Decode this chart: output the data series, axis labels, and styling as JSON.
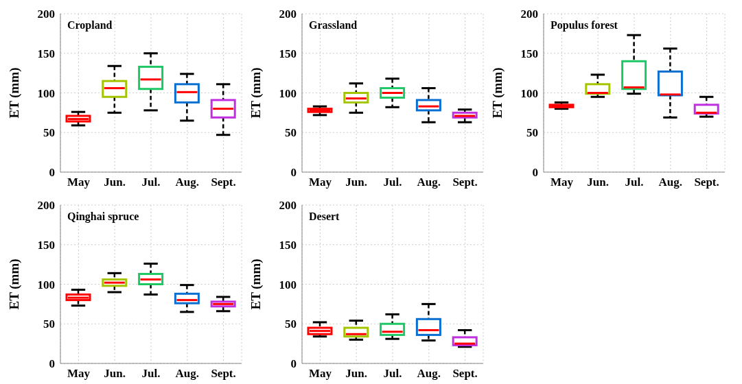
{
  "chart_data": [
    {
      "type": "box",
      "title": "Cropland",
      "ylabel": "ET (mm)",
      "categories": [
        "May",
        "Jun.",
        "Jul.",
        "Aug.",
        "Sept."
      ],
      "colors": [
        "#ff0000",
        "#a4c400",
        "#1ec864",
        "#0a6fd0",
        "#c030e0"
      ],
      "ylim": [
        0,
        200
      ],
      "yticks": [
        0,
        50,
        100,
        150,
        200
      ],
      "grid": true,
      "boxes": [
        {
          "low": 59,
          "q1": 64,
          "median": 67,
          "q3": 71,
          "high": 76
        },
        {
          "low": 75,
          "q1": 95,
          "median": 106,
          "q3": 115,
          "high": 134
        },
        {
          "low": 78,
          "q1": 105,
          "median": 117,
          "q3": 133,
          "high": 150
        },
        {
          "low": 65,
          "q1": 88,
          "median": 101,
          "q3": 111,
          "high": 124
        },
        {
          "low": 47,
          "q1": 69,
          "median": 80,
          "q3": 91,
          "high": 111
        }
      ]
    },
    {
      "type": "box",
      "title": "Grassland",
      "ylabel": "ET (mm)",
      "categories": [
        "May",
        "Jun.",
        "Jul.",
        "Aug.",
        "Sept."
      ],
      "colors": [
        "#ff0000",
        "#a4c400",
        "#1ec864",
        "#0a6fd0",
        "#c030e0"
      ],
      "ylim": [
        0,
        200
      ],
      "yticks": [
        0,
        50,
        100,
        150,
        200
      ],
      "grid": true,
      "boxes": [
        {
          "low": 72,
          "q1": 76,
          "median": 78,
          "q3": 80,
          "high": 83
        },
        {
          "low": 75,
          "q1": 88,
          "median": 93,
          "q3": 100,
          "high": 112
        },
        {
          "low": 82,
          "q1": 94,
          "median": 100,
          "q3": 106,
          "high": 118
        },
        {
          "low": 63,
          "q1": 78,
          "median": 83,
          "q3": 91,
          "high": 106
        },
        {
          "low": 63,
          "q1": 69,
          "median": 71,
          "q3": 75,
          "high": 79
        }
      ]
    },
    {
      "type": "box",
      "title": "Populus forest",
      "ylabel": "ET (mm)",
      "categories": [
        "May",
        "Jun.",
        "Jul.",
        "Aug.",
        "Sept."
      ],
      "colors": [
        "#ff0000",
        "#a4c400",
        "#1ec864",
        "#0a6fd0",
        "#c030e0"
      ],
      "ylim": [
        0,
        200
      ],
      "yticks": [
        0,
        50,
        100,
        150,
        200
      ],
      "grid": true,
      "boxes": [
        {
          "low": 80,
          "q1": 82,
          "median": 84,
          "q3": 85,
          "high": 88
        },
        {
          "low": 95,
          "q1": 99,
          "median": 100,
          "q3": 111,
          "high": 123
        },
        {
          "low": 99,
          "q1": 105,
          "median": 107,
          "q3": 140,
          "high": 173
        },
        {
          "low": 69,
          "q1": 97,
          "median": 98,
          "q3": 127,
          "high": 156
        },
        {
          "low": 70,
          "q1": 74,
          "median": 75,
          "q3": 85,
          "high": 95
        }
      ]
    },
    {
      "type": "box",
      "title": "Qinghai spruce",
      "ylabel": "ET (mm)",
      "categories": [
        "May",
        "Jun.",
        "Jul.",
        "Aug.",
        "Sept."
      ],
      "colors": [
        "#ff0000",
        "#a4c400",
        "#1ec864",
        "#0a6fd0",
        "#c030e0"
      ],
      "ylim": [
        0,
        200
      ],
      "yticks": [
        0,
        50,
        100,
        150,
        200
      ],
      "grid": true,
      "boxes": [
        {
          "low": 73,
          "q1": 80,
          "median": 83,
          "q3": 87,
          "high": 93
        },
        {
          "low": 90,
          "q1": 98,
          "median": 102,
          "q3": 106,
          "high": 114
        },
        {
          "low": 87,
          "q1": 100,
          "median": 106,
          "q3": 113,
          "high": 126
        },
        {
          "low": 65,
          "q1": 76,
          "median": 80,
          "q3": 88,
          "high": 99
        },
        {
          "low": 66,
          "q1": 72,
          "median": 75,
          "q3": 78,
          "high": 84
        }
      ]
    },
    {
      "type": "box",
      "title": "Desert",
      "ylabel": "ET (mm)",
      "categories": [
        "May",
        "Jun.",
        "Jul.",
        "Aug.",
        "Sept."
      ],
      "colors": [
        "#ff0000",
        "#a4c400",
        "#1ec864",
        "#0a6fd0",
        "#c030e0"
      ],
      "ylim": [
        0,
        200
      ],
      "yticks": [
        0,
        50,
        100,
        150,
        200
      ],
      "grid": true,
      "boxes": [
        {
          "low": 34,
          "q1": 37,
          "median": 41,
          "q3": 45,
          "high": 52
        },
        {
          "low": 30,
          "q1": 34,
          "median": 37,
          "q3": 45,
          "high": 54
        },
        {
          "low": 31,
          "q1": 36,
          "median": 40,
          "q3": 50,
          "high": 62
        },
        {
          "low": 29,
          "q1": 36,
          "median": 42,
          "q3": 56,
          "high": 75
        },
        {
          "low": 21,
          "q1": 23,
          "median": 25,
          "q3": 33,
          "high": 42
        }
      ]
    }
  ]
}
